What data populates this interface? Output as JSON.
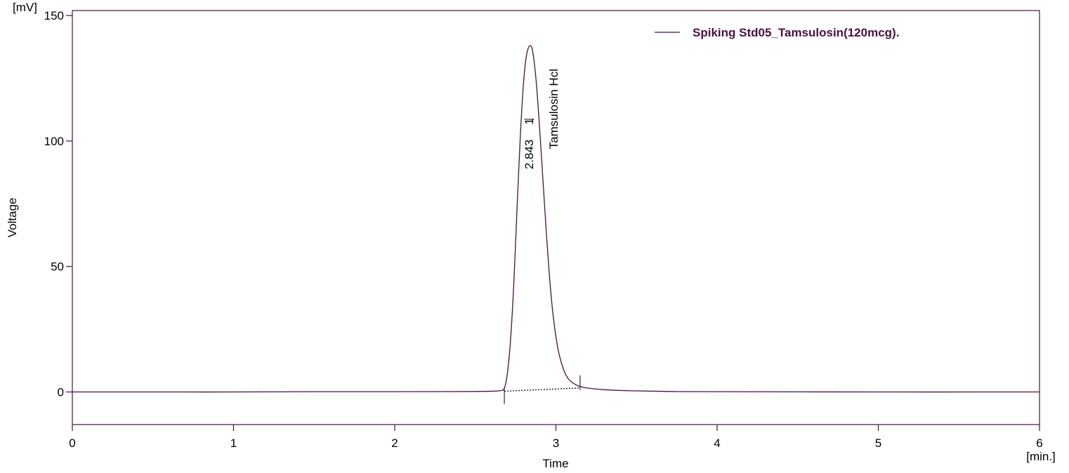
{
  "chart_data": {
    "type": "line",
    "xlabel": "Time",
    "ylabel": "Voltage",
    "x_unit": "[min.]",
    "y_unit": "[mV]",
    "xlim": [
      0,
      6
    ],
    "ylim": [
      -13,
      152
    ],
    "x_ticks": [
      0,
      1,
      2,
      3,
      4,
      5,
      6
    ],
    "y_ticks": [
      0,
      50,
      100,
      150
    ],
    "grid": false,
    "legend_position": "top-right",
    "series": [
      {
        "name": "Spiking Std05_Tamsulosin(120mcg).",
        "color": "#4a1040",
        "x": [
          0,
          0.5,
          1.0,
          1.5,
          2.0,
          2.3,
          2.5,
          2.6,
          2.65,
          2.68,
          2.7,
          2.72,
          2.74,
          2.76,
          2.78,
          2.8,
          2.82,
          2.843,
          2.86,
          2.88,
          2.9,
          2.92,
          2.94,
          2.96,
          2.98,
          3.0,
          3.02,
          3.05,
          3.08,
          3.12,
          3.16,
          3.2,
          3.3,
          3.45,
          3.7,
          4.0,
          5.0,
          6.0
        ],
        "y": [
          0,
          0,
          0,
          0.1,
          0.1,
          0.15,
          0.2,
          0.3,
          0.5,
          1.5,
          8,
          22,
          45,
          75,
          103,
          124,
          135,
          138,
          134,
          122,
          104,
          84,
          64,
          46,
          32,
          22,
          15,
          8.5,
          5,
          3,
          2,
          1.5,
          0.9,
          0.5,
          0.2,
          0.1,
          0,
          0
        ]
      }
    ],
    "peaks": [
      {
        "retention_time": 2.843,
        "retention_label": "2.843",
        "peak_number": "1",
        "name": "Tamsulosin Hcl",
        "apex_y": 138,
        "start_x": 2.68,
        "start_y": 0.3,
        "end_x": 3.15,
        "end_y": 1.6
      }
    ]
  },
  "colors": {
    "trace": "#4a1040",
    "axis": "#4a1040",
    "baseline": "#000000"
  }
}
